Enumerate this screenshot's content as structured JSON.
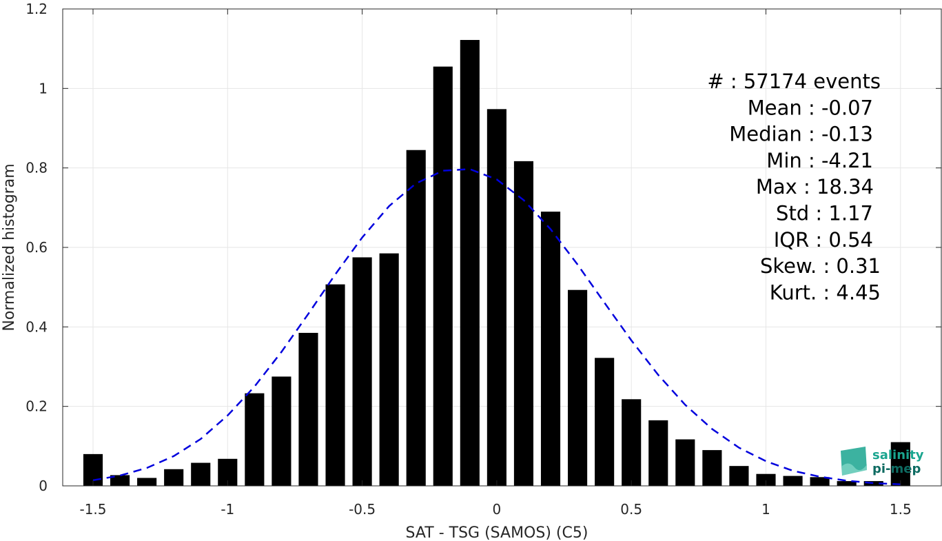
{
  "chart_data": {
    "type": "bar",
    "xlabel": "SAT - TSG (SAMOS) (C5)",
    "ylabel": "Normalized histogram",
    "xlim": [
      -1.6,
      1.6
    ],
    "ylim": [
      0,
      1.2
    ],
    "grid": true,
    "x_ticks": [
      "-1.5",
      "-1",
      "-0.5",
      "0",
      "0.5",
      "1",
      "1.5"
    ],
    "x_tick_values": [
      -1.5,
      -1,
      -0.5,
      0,
      0.5,
      1,
      1.5
    ],
    "y_ticks": [
      "0",
      "0.2",
      "0.4",
      "0.6",
      "0.8",
      "1",
      "1.2"
    ],
    "y_tick_values": [
      0,
      0.2,
      0.4,
      0.6,
      0.8,
      1,
      1.2
    ],
    "bin_width": 0.1,
    "bin_centers": [
      -1.5,
      -1.4,
      -1.3,
      -1.2,
      -1.1,
      -1.0,
      -0.9,
      -0.8,
      -0.7,
      -0.6,
      -0.5,
      -0.4,
      -0.3,
      -0.2,
      -0.1,
      0.0,
      0.1,
      0.2,
      0.3,
      0.4,
      0.5,
      0.6,
      0.7,
      0.8,
      0.9,
      1.0,
      1.1,
      1.2,
      1.3,
      1.4,
      1.5
    ],
    "values": [
      0.08,
      0.027,
      0.02,
      0.042,
      0.058,
      0.068,
      0.233,
      0.275,
      0.385,
      0.507,
      0.575,
      0.585,
      0.845,
      1.055,
      1.122,
      0.948,
      0.817,
      0.69,
      0.493,
      0.322,
      0.218,
      0.165,
      0.117,
      0.09,
      0.05,
      0.03,
      0.025,
      0.022,
      0.012,
      0.012,
      0.11
    ],
    "bar_color": "#000000",
    "fit_curve": {
      "style": "dashed",
      "color": "#0000dd",
      "x": [
        -1.5,
        -1.4,
        -1.3,
        -1.2,
        -1.1,
        -1.0,
        -0.9,
        -0.8,
        -0.7,
        -0.6,
        -0.5,
        -0.4,
        -0.3,
        -0.2,
        -0.1,
        0.0,
        0.1,
        0.2,
        0.3,
        0.4,
        0.5,
        0.6,
        0.7,
        0.8,
        0.9,
        1.0,
        1.1,
        1.2,
        1.3,
        1.4,
        1.5
      ],
      "y": [
        0.014,
        0.026,
        0.045,
        0.075,
        0.118,
        0.177,
        0.25,
        0.337,
        0.433,
        0.532,
        0.625,
        0.704,
        0.761,
        0.793,
        0.797,
        0.771,
        0.719,
        0.646,
        0.557,
        0.461,
        0.366,
        0.279,
        0.204,
        0.143,
        0.096,
        0.062,
        0.038,
        0.023,
        0.013,
        0.007,
        0.004
      ]
    },
    "stats": [
      {
        "label": "#  : 57174 events"
      },
      {
        "label": "Mean : -0.07"
      },
      {
        "label": "Median : -0.13"
      },
      {
        "label": "Min : -4.21"
      },
      {
        "label": "Max : 18.34"
      },
      {
        "label": "Std : 1.17"
      },
      {
        "label": "IQR : 0.54"
      },
      {
        "label": "Skew. : 0.31"
      },
      {
        "label": "Kurt. : 4.45"
      }
    ],
    "logo": {
      "line1": "salinity",
      "line2": "pi-mep",
      "color": "#1aa58f",
      "dark": "#0e6b62"
    }
  }
}
